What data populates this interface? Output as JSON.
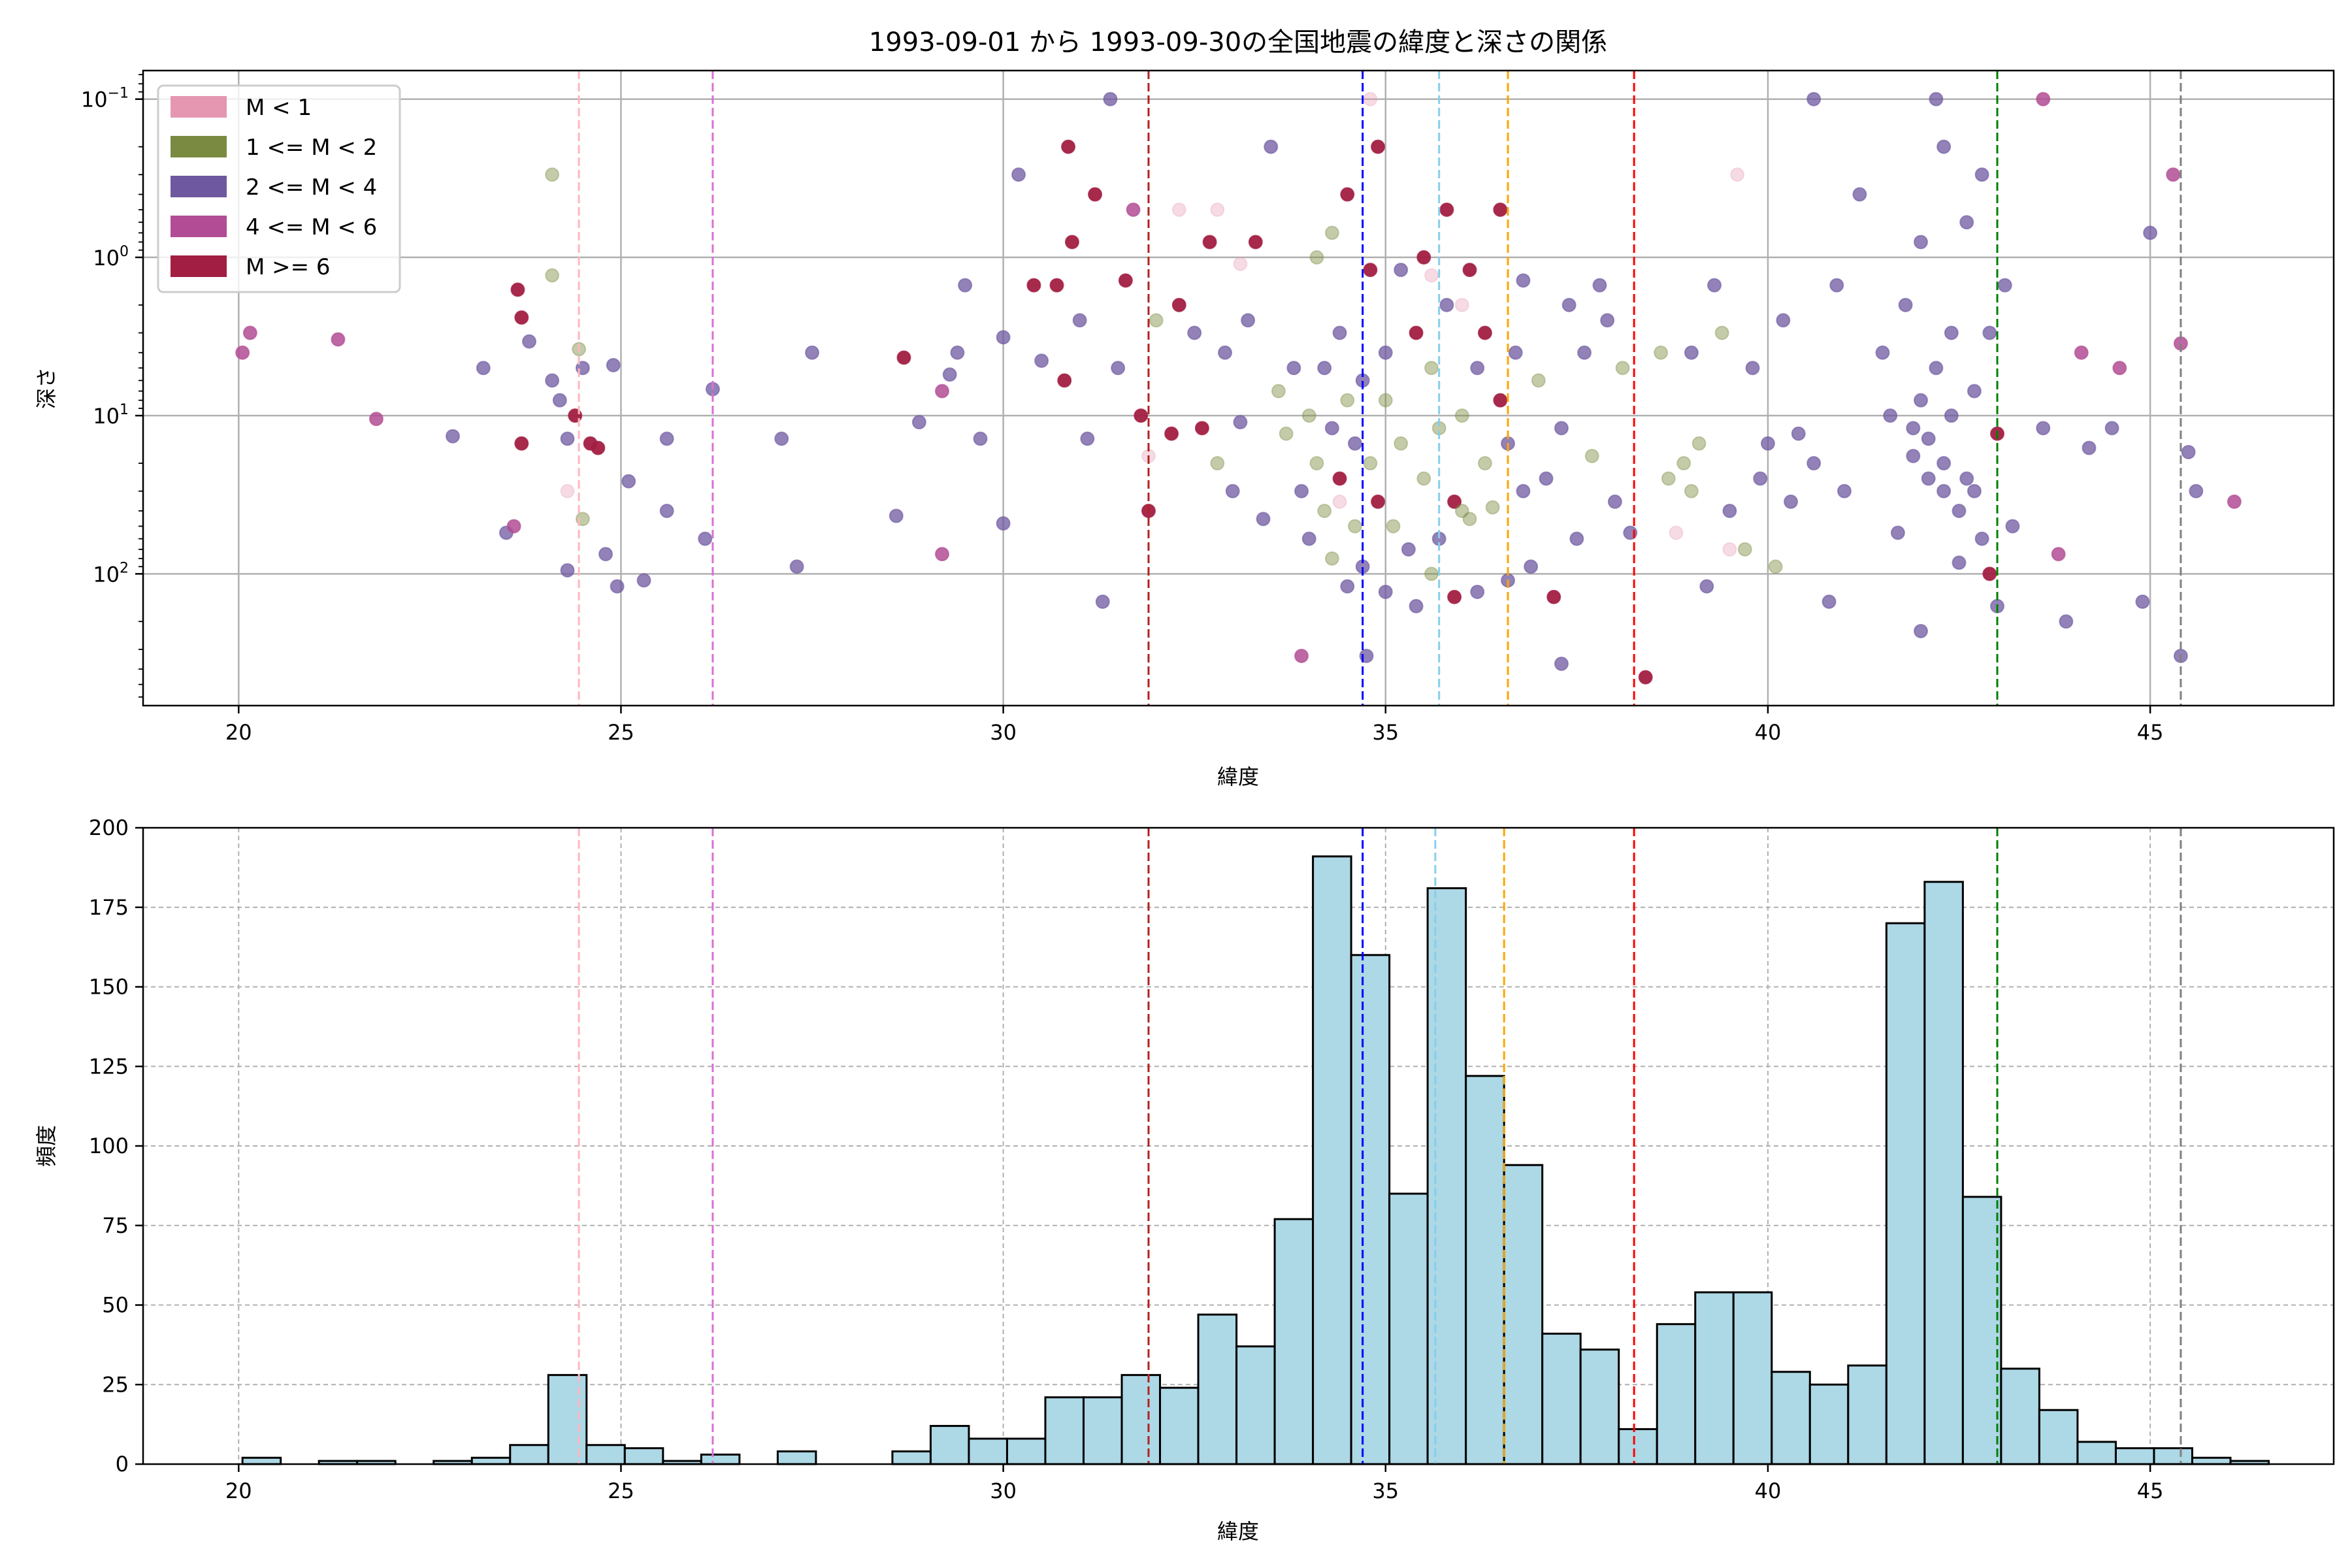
{
  "chart_data": [
    {
      "type": "scatter",
      "title": "1993-09-01 から 1993-09-30の全国地震の緯度と深さの関係",
      "xlabel": "緯度",
      "ylabel": "深さ",
      "xlim": [
        18.75,
        47.4
      ],
      "ylim": [
        0.066,
        680
      ],
      "yscale": "log",
      "y_inverted": true,
      "xticks": [
        20,
        25,
        30,
        35,
        40,
        45
      ],
      "yticks": [
        {
          "base": "10",
          "exp": "−1",
          "v": 0.1
        },
        {
          "base": "10",
          "exp": "0",
          "v": 1
        },
        {
          "base": "10",
          "exp": "1",
          "v": 10
        },
        {
          "base": "10",
          "exp": "2",
          "v": 100
        }
      ],
      "grid": true,
      "legend_position": "top-left",
      "classes": [
        {
          "label": "M < 1",
          "color": "#e597b1",
          "alpha": 0.35
        },
        {
          "label": "1 <= M < 2",
          "color": "#7a8b41",
          "alpha": 0.45
        },
        {
          "label": "2 <= M < 4",
          "color": "#6e58a0",
          "alpha": 0.75
        },
        {
          "label": "4 <= M < 6",
          "color": "#b24c94",
          "alpha": 0.85
        },
        {
          "label": "M >= 6",
          "color": "#a21e42",
          "alpha": 0.95
        }
      ],
      "points_lat_depth_class": [
        [
          20.05,
          4,
          3
        ],
        [
          20.15,
          3,
          3
        ],
        [
          21.3,
          3.3,
          3
        ],
        [
          21.8,
          10.5,
          3
        ],
        [
          22.8,
          13.5,
          2
        ],
        [
          23.2,
          5,
          2
        ],
        [
          23.5,
          55,
          2
        ],
        [
          23.6,
          50,
          3
        ],
        [
          23.65,
          1.6,
          4
        ],
        [
          23.7,
          2.4,
          4
        ],
        [
          23.7,
          15,
          4
        ],
        [
          23.8,
          3.4,
          2
        ],
        [
          24.1,
          0.3,
          1
        ],
        [
          24.1,
          1.3,
          1
        ],
        [
          24.1,
          6,
          2
        ],
        [
          24.2,
          8,
          2
        ],
        [
          24.3,
          14,
          2
        ],
        [
          24.4,
          10,
          4
        ],
        [
          24.45,
          3.8,
          1
        ],
        [
          24.5,
          5,
          2
        ],
        [
          24.5,
          45,
          1
        ],
        [
          24.6,
          15,
          4
        ],
        [
          24.7,
          16,
          4
        ],
        [
          24.3,
          95,
          2
        ],
        [
          24.8,
          75,
          2
        ],
        [
          24.95,
          120,
          2
        ],
        [
          24.9,
          4.8,
          2
        ],
        [
          25.1,
          26,
          2
        ],
        [
          25.3,
          110,
          2
        ],
        [
          25.6,
          40,
          2
        ],
        [
          25.6,
          14,
          2
        ],
        [
          26.1,
          60,
          2
        ],
        [
          26.2,
          6.8,
          2
        ],
        [
          27.1,
          14,
          2
        ],
        [
          27.3,
          90,
          2
        ],
        [
          27.5,
          4,
          2
        ],
        [
          28.6,
          43,
          2
        ],
        [
          28.7,
          4.3,
          4
        ],
        [
          28.9,
          11,
          2
        ],
        [
          29.2,
          7,
          3
        ],
        [
          29.2,
          75,
          3
        ],
        [
          29.3,
          5.5,
          2
        ],
        [
          29.4,
          4,
          2
        ],
        [
          29.5,
          1.5,
          2
        ],
        [
          29.7,
          14,
          2
        ],
        [
          30.0,
          3.2,
          2
        ],
        [
          30.0,
          48,
          2
        ],
        [
          30.2,
          0.3,
          2
        ],
        [
          30.4,
          1.5,
          4
        ],
        [
          30.5,
          4.5,
          2
        ],
        [
          30.7,
          1.5,
          4
        ],
        [
          30.8,
          6,
          4
        ],
        [
          30.9,
          0.8,
          4
        ],
        [
          30.85,
          0.2,
          4
        ],
        [
          31.0,
          2.5,
          2
        ],
        [
          31.1,
          14,
          2
        ],
        [
          31.2,
          0.4,
          4
        ],
        [
          31.3,
          150,
          2
        ],
        [
          31.4,
          0.1,
          2
        ],
        [
          31.5,
          5,
          2
        ],
        [
          31.6,
          1.4,
          4
        ],
        [
          31.7,
          0.5,
          3
        ],
        [
          31.8,
          10,
          4
        ],
        [
          31.9,
          40,
          4
        ],
        [
          32.0,
          2.5,
          1
        ],
        [
          32.2,
          13,
          4
        ],
        [
          32.3,
          2,
          4
        ],
        [
          32.5,
          3,
          2
        ],
        [
          32.6,
          12,
          4
        ],
        [
          32.7,
          0.8,
          4
        ],
        [
          32.8,
          0.5,
          0
        ],
        [
          32.8,
          20,
          1
        ],
        [
          32.9,
          4,
          2
        ],
        [
          33.0,
          30,
          2
        ],
        [
          33.1,
          11,
          2
        ],
        [
          33.2,
          2.5,
          2
        ],
        [
          33.3,
          0.8,
          4
        ],
        [
          33.4,
          45,
          2
        ],
        [
          33.5,
          0.2,
          2
        ],
        [
          33.6,
          7,
          1
        ],
        [
          33.7,
          13,
          1
        ],
        [
          33.8,
          5,
          2
        ],
        [
          33.9,
          30,
          2
        ],
        [
          33.9,
          330,
          3
        ],
        [
          34.0,
          10,
          1
        ],
        [
          34.0,
          60,
          2
        ],
        [
          34.1,
          1,
          1
        ],
        [
          34.1,
          20,
          1
        ],
        [
          34.2,
          5,
          2
        ],
        [
          34.2,
          40,
          1
        ],
        [
          34.3,
          0.7,
          1
        ],
        [
          34.3,
          80,
          1
        ],
        [
          34.3,
          12,
          2
        ],
        [
          34.4,
          3,
          2
        ],
        [
          34.4,
          25,
          4
        ],
        [
          34.5,
          8,
          1
        ],
        [
          34.5,
          120,
          2
        ],
        [
          34.5,
          0.4,
          4
        ],
        [
          34.6,
          15,
          2
        ],
        [
          34.6,
          50,
          1
        ],
        [
          34.7,
          6,
          2
        ],
        [
          34.7,
          90,
          2
        ],
        [
          34.75,
          330,
          2
        ],
        [
          34.8,
          1.2,
          4
        ],
        [
          34.8,
          20,
          1
        ],
        [
          34.9,
          0.2,
          4
        ],
        [
          34.9,
          35,
          4
        ],
        [
          35.0,
          4,
          2
        ],
        [
          35.0,
          130,
          2
        ],
        [
          35.0,
          8,
          1
        ],
        [
          35.1,
          50,
          1
        ],
        [
          35.2,
          1.2,
          2
        ],
        [
          35.2,
          15,
          1
        ],
        [
          35.3,
          70,
          2
        ],
        [
          35.4,
          3,
          4
        ],
        [
          35.4,
          160,
          2
        ],
        [
          35.5,
          1,
          4
        ],
        [
          35.5,
          25,
          1
        ],
        [
          35.6,
          5,
          1
        ],
        [
          35.6,
          100,
          1
        ],
        [
          35.7,
          12,
          1
        ],
        [
          35.7,
          60,
          2
        ],
        [
          35.8,
          0.5,
          4
        ],
        [
          35.8,
          2,
          2
        ],
        [
          35.9,
          35,
          4
        ],
        [
          35.9,
          140,
          4
        ],
        [
          36.0,
          10,
          1
        ],
        [
          36.0,
          40,
          1
        ],
        [
          36.1,
          1.2,
          4
        ],
        [
          36.1,
          45,
          1
        ],
        [
          36.2,
          5,
          2
        ],
        [
          36.2,
          130,
          2
        ],
        [
          36.3,
          20,
          1
        ],
        [
          36.3,
          3,
          4
        ],
        [
          36.4,
          38,
          1
        ],
        [
          36.5,
          8,
          4
        ],
        [
          36.5,
          0.5,
          4
        ],
        [
          36.6,
          110,
          2
        ],
        [
          36.6,
          15,
          2
        ],
        [
          36.7,
          4,
          2
        ],
        [
          36.8,
          30,
          2
        ],
        [
          36.8,
          1.4,
          2
        ],
        [
          36.9,
          90,
          2
        ],
        [
          37.0,
          6,
          1
        ],
        [
          37.1,
          25,
          2
        ],
        [
          37.2,
          140,
          4
        ],
        [
          37.3,
          12,
          2
        ],
        [
          37.3,
          370,
          2
        ],
        [
          37.4,
          2,
          2
        ],
        [
          37.5,
          60,
          2
        ],
        [
          37.6,
          4,
          2
        ],
        [
          37.7,
          18,
          1
        ],
        [
          37.8,
          1.5,
          2
        ],
        [
          37.9,
          2.5,
          2
        ],
        [
          38.0,
          35,
          2
        ],
        [
          38.1,
          5,
          1
        ],
        [
          38.2,
          55,
          2
        ],
        [
          38.4,
          450,
          4
        ],
        [
          38.6,
          4,
          1
        ],
        [
          38.7,
          25,
          1
        ],
        [
          38.8,
          55,
          0
        ],
        [
          38.9,
          20,
          1
        ],
        [
          39.0,
          30,
          1
        ],
        [
          39.0,
          4,
          2
        ],
        [
          39.1,
          15,
          1
        ],
        [
          39.2,
          120,
          2
        ],
        [
          39.3,
          1.5,
          2
        ],
        [
          39.4,
          3,
          1
        ],
        [
          39.5,
          40,
          2
        ],
        [
          39.6,
          0.3,
          0
        ],
        [
          39.7,
          70,
          1
        ],
        [
          39.8,
          5,
          2
        ],
        [
          39.9,
          25,
          2
        ],
        [
          40.0,
          15,
          2
        ],
        [
          40.1,
          90,
          1
        ],
        [
          40.2,
          2.5,
          2
        ],
        [
          40.3,
          35,
          2
        ],
        [
          40.4,
          13,
          2
        ],
        [
          40.6,
          0.1,
          2
        ],
        [
          40.6,
          20,
          2
        ],
        [
          40.8,
          150,
          2
        ],
        [
          40.9,
          1.5,
          2
        ],
        [
          41.0,
          30,
          2
        ],
        [
          41.2,
          0.4,
          2
        ],
        [
          41.5,
          4,
          2
        ],
        [
          41.6,
          10,
          2
        ],
        [
          41.7,
          55,
          2
        ],
        [
          41.8,
          2,
          2
        ],
        [
          41.9,
          12,
          2
        ],
        [
          41.9,
          18,
          2
        ],
        [
          42.0,
          8,
          2
        ],
        [
          42.0,
          0.8,
          2
        ],
        [
          42.0,
          230,
          2
        ],
        [
          42.1,
          14,
          2
        ],
        [
          42.1,
          25,
          2
        ],
        [
          42.2,
          5,
          2
        ],
        [
          42.2,
          0.1,
          2
        ],
        [
          42.3,
          20,
          2
        ],
        [
          42.3,
          30,
          2
        ],
        [
          42.3,
          0.2,
          2
        ],
        [
          42.4,
          10,
          2
        ],
        [
          42.4,
          3,
          2
        ],
        [
          42.5,
          40,
          2
        ],
        [
          42.5,
          85,
          2
        ],
        [
          42.6,
          25,
          2
        ],
        [
          42.6,
          0.6,
          2
        ],
        [
          42.7,
          7,
          2
        ],
        [
          42.7,
          30,
          2
        ],
        [
          42.8,
          60,
          2
        ],
        [
          42.8,
          0.3,
          2
        ],
        [
          42.9,
          100,
          4
        ],
        [
          42.9,
          3,
          2
        ],
        [
          43.0,
          13,
          4
        ],
        [
          43.0,
          160,
          2
        ],
        [
          43.1,
          1.5,
          2
        ],
        [
          43.2,
          50,
          2
        ],
        [
          43.6,
          0.1,
          3
        ],
        [
          43.6,
          12,
          2
        ],
        [
          43.8,
          75,
          3
        ],
        [
          43.9,
          200,
          2
        ],
        [
          44.1,
          4,
          3
        ],
        [
          44.2,
          16,
          2
        ],
        [
          44.5,
          12,
          2
        ],
        [
          44.6,
          5,
          3
        ],
        [
          44.9,
          150,
          2
        ],
        [
          45.0,
          0.7,
          2
        ],
        [
          45.3,
          0.3,
          3
        ],
        [
          45.4,
          330,
          2
        ],
        [
          45.4,
          3.5,
          3
        ],
        [
          45.5,
          17,
          2
        ],
        [
          45.6,
          30,
          2
        ],
        [
          46.1,
          35,
          3
        ],
        [
          32.3,
          0.5,
          0
        ],
        [
          33.1,
          1.1,
          0
        ],
        [
          34.8,
          0.1,
          0
        ],
        [
          36.0,
          2,
          0
        ],
        [
          39.5,
          70,
          0
        ],
        [
          31.9,
          18,
          0
        ],
        [
          35.6,
          1.3,
          0
        ],
        [
          24.3,
          30,
          0
        ],
        [
          34.4,
          35,
          0
        ]
      ],
      "vlines": [
        {
          "x": 24.45,
          "color": "#ffb6c1"
        },
        {
          "x": 26.2,
          "color": "#da70d6"
        },
        {
          "x": 31.9,
          "color": "#b22222"
        },
        {
          "x": 34.7,
          "color": "#0000ff"
        },
        {
          "x": 35.7,
          "color": "#87ceeb"
        },
        {
          "x": 36.6,
          "color": "#ffa500"
        },
        {
          "x": 38.25,
          "color": "#ff0000"
        },
        {
          "x": 43.0,
          "color": "#008000"
        },
        {
          "x": 45.4,
          "color": "#808080"
        }
      ]
    },
    {
      "type": "bar",
      "subtype": "histogram",
      "xlabel": "緯度",
      "ylabel": "頻度",
      "xlim": [
        18.75,
        47.4
      ],
      "ylim": [
        0,
        200
      ],
      "xticks": [
        20,
        25,
        30,
        35,
        40,
        45
      ],
      "yticks": [
        0,
        25,
        50,
        75,
        100,
        125,
        150,
        175,
        200
      ],
      "grid": "dashed",
      "bin_start": 20.05,
      "bin_width": 0.5,
      "bar_color": "#add8e6",
      "edge_color": "#000000",
      "counts": [
        2,
        0,
        1,
        1,
        0,
        1,
        2,
        6,
        28,
        6,
        5,
        1,
        3,
        0,
        4,
        0,
        0,
        4,
        12,
        8,
        8,
        21,
        21,
        28,
        24,
        47,
        37,
        77,
        191,
        160,
        85,
        181,
        122,
        94,
        41,
        36,
        11,
        44,
        54,
        54,
        29,
        25,
        31,
        170,
        183,
        84,
        30,
        17,
        7,
        5,
        5,
        2,
        1
      ],
      "vlines": [
        {
          "x": 24.45,
          "color": "#ffb6c1"
        },
        {
          "x": 26.2,
          "color": "#da70d6"
        },
        {
          "x": 31.9,
          "color": "#b22222"
        },
        {
          "x": 34.7,
          "color": "#0000ff"
        },
        {
          "x": 35.65,
          "color": "#87ceeb"
        },
        {
          "x": 36.55,
          "color": "#ffa500"
        },
        {
          "x": 38.25,
          "color": "#ff0000"
        },
        {
          "x": 43.0,
          "color": "#008000"
        },
        {
          "x": 45.4,
          "color": "#808080"
        }
      ]
    }
  ]
}
